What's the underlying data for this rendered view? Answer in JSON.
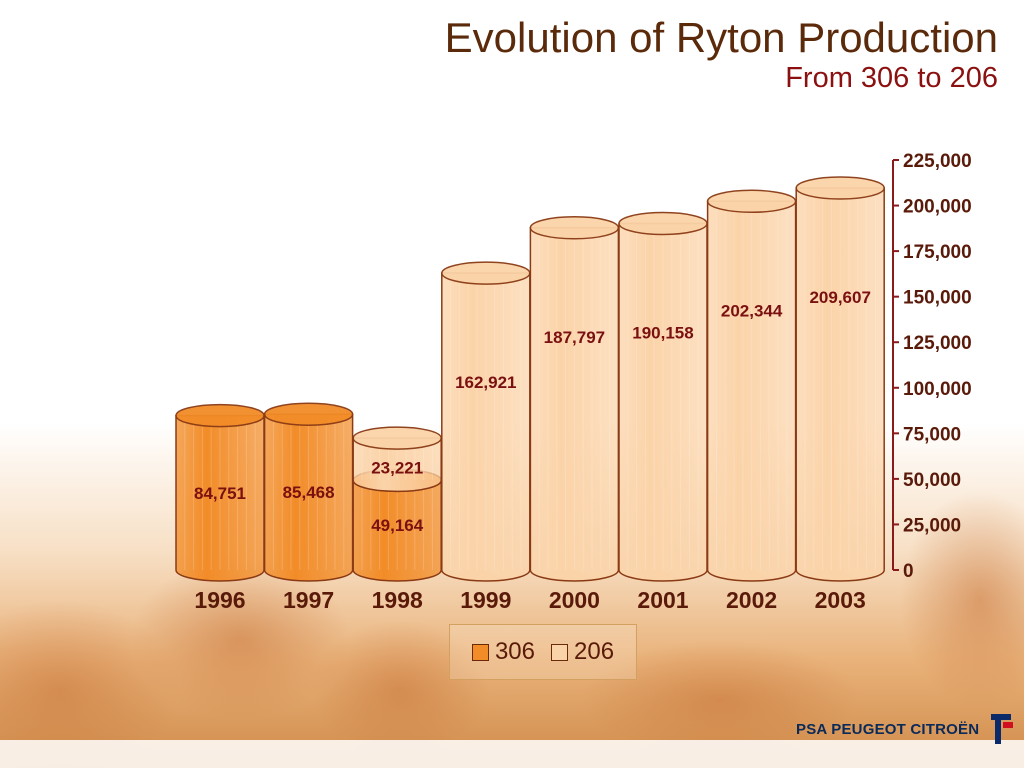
{
  "slide": {
    "title": "Evolution of Ryton Production",
    "subtitle": "From 306 to 206",
    "logo_text": "PSA PEUGEOT CITROËN"
  },
  "colors": {
    "series_306": "#f28c28",
    "series_206": "#fbd3a8",
    "outline": "#8a3a14",
    "axis": "#8b1a1a",
    "title": "#5a2a0a",
    "subtitle": "#8b1010"
  },
  "legend": {
    "items": [
      {
        "label": "306",
        "color": "#f28c28"
      },
      {
        "label": "206",
        "color": "#fbd3a8"
      }
    ]
  },
  "chart_data": {
    "type": "bar",
    "stacked": true,
    "style": "3d-cylinder",
    "categories": [
      "1996",
      "1997",
      "1998",
      "1999",
      "2000",
      "2001",
      "2002",
      "2003"
    ],
    "series": [
      {
        "name": "306",
        "values": [
          84751,
          85468,
          49164,
          0,
          0,
          0,
          0,
          0
        ]
      },
      {
        "name": "206",
        "values": [
          0,
          0,
          23221,
          162921,
          187797,
          190158,
          202344,
          209607
        ]
      }
    ],
    "data_labels": [
      {
        "category": "1996",
        "series": "306",
        "text": "84,751"
      },
      {
        "category": "1997",
        "series": "306",
        "text": "85,468"
      },
      {
        "category": "1998",
        "series": "306",
        "text": "49,164"
      },
      {
        "category": "1998",
        "series": "206",
        "text": "23,221"
      },
      {
        "category": "1999",
        "series": "206",
        "text": "162,921"
      },
      {
        "category": "2000",
        "series": "206",
        "text": "187,797"
      },
      {
        "category": "2001",
        "series": "206",
        "text": "190,158"
      },
      {
        "category": "2002",
        "series": "206",
        "text": "202,344"
      },
      {
        "category": "2003",
        "series": "206",
        "text": "209,607"
      }
    ],
    "y_ticks": [
      "0",
      "25,000",
      "50,000",
      "75,000",
      "100,000",
      "125,000",
      "150,000",
      "175,000",
      "200,000",
      "225,000"
    ],
    "ylim": [
      0,
      225000
    ],
    "y_axis_side": "right",
    "legend_position": "bottom",
    "grid": false
  }
}
